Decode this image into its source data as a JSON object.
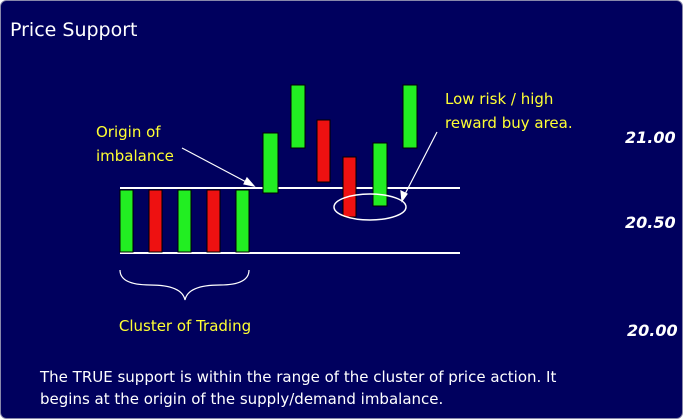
{
  "title": "Price Support",
  "annotations": {
    "origin": [
      "Origin of",
      "imbalance"
    ],
    "low_risk": [
      "Low risk / high",
      "reward buy area."
    ],
    "cluster": "Cluster of Trading"
  },
  "price_labels": [
    "21.00",
    "20.50",
    "20.00"
  ],
  "caption": [
    "The TRUE support is within the range of the cluster of price action. It",
    "begins at the origin of the supply/demand imbalance."
  ]
}
